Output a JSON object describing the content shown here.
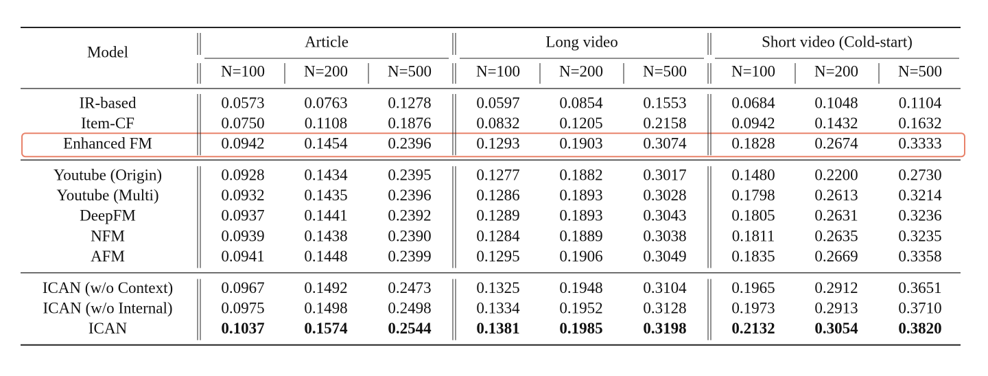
{
  "table": {
    "header": {
      "model": "Model",
      "groups": [
        {
          "name": "Article",
          "subcolumns": [
            "N=100",
            "N=200",
            "N=500"
          ]
        },
        {
          "name": "Long video",
          "subcolumns": [
            "N=100",
            "N=200",
            "N=500"
          ]
        },
        {
          "name": "Short video (Cold-start)",
          "subcolumns": [
            "N=100",
            "N=200",
            "N=500"
          ]
        }
      ]
    },
    "sections": [
      {
        "rows": [
          {
            "label": "IR-based",
            "values": [
              "0.0573",
              "0.0763",
              "0.1278",
              "0.0597",
              "0.0854",
              "0.1553",
              "0.0684",
              "0.1048",
              "0.1104"
            ]
          },
          {
            "label": "Item-CF",
            "values": [
              "0.0750",
              "0.1108",
              "0.1876",
              "0.0832",
              "0.1205",
              "0.2158",
              "0.0942",
              "0.1432",
              "0.1632"
            ]
          },
          {
            "label": "Enhanced FM",
            "highlight": true,
            "values": [
              "0.0942",
              "0.1454",
              "0.2396",
              "0.1293",
              "0.1903",
              "0.3074",
              "0.1828",
              "0.2674",
              "0.3333"
            ]
          }
        ]
      },
      {
        "rows": [
          {
            "label": "Youtube (Origin)",
            "values": [
              "0.0928",
              "0.1434",
              "0.2395",
              "0.1277",
              "0.1882",
              "0.3017",
              "0.1480",
              "0.2200",
              "0.2730"
            ]
          },
          {
            "label": "Youtube (Multi)",
            "values": [
              "0.0932",
              "0.1435",
              "0.2396",
              "0.1286",
              "0.1893",
              "0.3028",
              "0.1798",
              "0.2613",
              "0.3214"
            ]
          },
          {
            "label": "DeepFM",
            "values": [
              "0.0937",
              "0.1441",
              "0.2392",
              "0.1289",
              "0.1893",
              "0.3043",
              "0.1805",
              "0.2631",
              "0.3236"
            ]
          },
          {
            "label": "NFM",
            "values": [
              "0.0939",
              "0.1438",
              "0.2390",
              "0.1284",
              "0.1889",
              "0.3038",
              "0.1811",
              "0.2635",
              "0.3235"
            ]
          },
          {
            "label": "AFM",
            "values": [
              "0.0941",
              "0.1448",
              "0.2399",
              "0.1295",
              "0.1906",
              "0.3049",
              "0.1835",
              "0.2669",
              "0.3358"
            ]
          }
        ]
      },
      {
        "rows": [
          {
            "label": "ICAN (w/o Context)",
            "values": [
              "0.0967",
              "0.1492",
              "0.2473",
              "0.1325",
              "0.1948",
              "0.3104",
              "0.1965",
              "0.2912",
              "0.3651"
            ]
          },
          {
            "label": "ICAN (w/o Internal)",
            "values": [
              "0.0975",
              "0.1498",
              "0.2498",
              "0.1334",
              "0.1952",
              "0.3128",
              "0.1973",
              "0.2913",
              "0.3710"
            ]
          },
          {
            "label": "ICAN",
            "bold": true,
            "values": [
              "0.1037",
              "0.1574",
              "0.2544",
              "0.1381",
              "0.1985",
              "0.3198",
              "0.2132",
              "0.3054",
              "0.3820"
            ]
          }
        ]
      }
    ]
  }
}
